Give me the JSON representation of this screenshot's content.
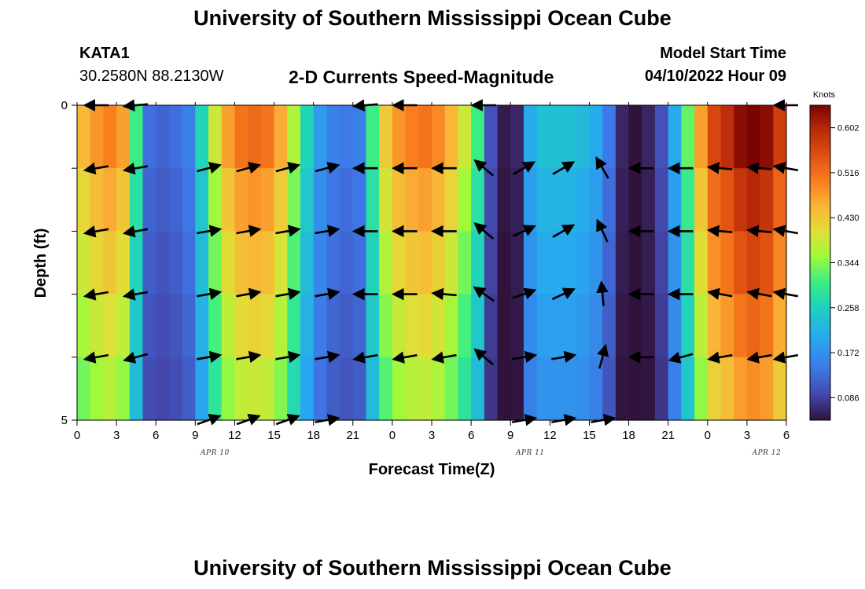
{
  "header": {
    "title": "University of Southern Mississippi Ocean Cube",
    "station": "KATA1",
    "coords": "30.2580N  88.2130W",
    "subtitle": "2-D Currents Speed-Magnitude",
    "model_label": "Model Start Time",
    "model_time": "04/10/2022 Hour 09",
    "footer_title": "University of Southern Mississippi Ocean Cube"
  },
  "colors": {
    "axis": "#000000",
    "arrow": "#000000"
  },
  "chart_data": {
    "type": "heatmap",
    "title": "2-D Currents Speed-Magnitude",
    "xlabel": "Forecast Time(Z)",
    "ylabel": "Depth (ft)",
    "x_tick_labels": [
      "0",
      "3",
      "6",
      "9",
      "12",
      "15",
      "18",
      "21",
      "0",
      "3",
      "6",
      "9",
      "12",
      "15",
      "18",
      "21",
      "0",
      "3",
      "6"
    ],
    "date_labels": [
      {
        "text": "APR 10",
        "hour": 10.5
      },
      {
        "text": "APR 11",
        "hour": 34.5
      },
      {
        "text": "APR 12",
        "hour": 52.5
      }
    ],
    "y_tick_labels": [
      "0",
      "5"
    ],
    "ylim": [
      0,
      5
    ],
    "xlim_hours": [
      0,
      54
    ],
    "colorbar": {
      "label": "Knots",
      "min": 0.043,
      "max": 0.645,
      "ticks": [
        "0.602",
        "0.516",
        "0.430",
        "0.344",
        "0.258",
        "0.172",
        "0.086"
      ],
      "tick_values": [
        0.602,
        0.516,
        0.43,
        0.344,
        0.258,
        0.172,
        0.086
      ]
    },
    "speed_by_hour": [
      0.44,
      0.47,
      0.49,
      0.46,
      0.3,
      0.13,
      0.12,
      0.13,
      0.15,
      0.26,
      0.38,
      0.46,
      0.5,
      0.51,
      0.5,
      0.45,
      0.36,
      0.26,
      0.18,
      0.15,
      0.14,
      0.15,
      0.3,
      0.42,
      0.47,
      0.49,
      0.5,
      0.48,
      0.44,
      0.38,
      0.3,
      0.1,
      0.05,
      0.06,
      0.2,
      0.23,
      0.23,
      0.23,
      0.22,
      0.2,
      0.14,
      0.06,
      0.04,
      0.06,
      0.1,
      0.2,
      0.32,
      0.46,
      0.55,
      0.58,
      0.62,
      0.64,
      0.62,
      0.56,
      0.58
    ],
    "arrow_hours": [
      1.5,
      4.5,
      10,
      13,
      16,
      19,
      22,
      25,
      28,
      31,
      34,
      37,
      40,
      43,
      46,
      49,
      52,
      54
    ],
    "arrow_depths": [
      0,
      1,
      2,
      3,
      4,
      5
    ],
    "arrow_angles_by_depth": [
      [
        180,
        185,
        null,
        null,
        null,
        null,
        185,
        180,
        null,
        180,
        null,
        null,
        null,
        null,
        null,
        null,
        null,
        180
      ],
      [
        190,
        190,
        15,
        15,
        15,
        15,
        180,
        180,
        180,
        140,
        30,
        30,
        120,
        180,
        180,
        175,
        175,
        170
      ],
      [
        190,
        190,
        10,
        10,
        10,
        10,
        180,
        180,
        180,
        140,
        25,
        30,
        115,
        180,
        180,
        175,
        175,
        170
      ],
      [
        190,
        190,
        10,
        10,
        10,
        10,
        180,
        180,
        175,
        145,
        20,
        25,
        95,
        180,
        180,
        170,
        170,
        170
      ],
      [
        190,
        195,
        10,
        10,
        10,
        10,
        190,
        190,
        190,
        140,
        10,
        10,
        75,
        180,
        195,
        190,
        190,
        190
      ],
      [
        null,
        null,
        20,
        20,
        20,
        10,
        null,
        null,
        null,
        null,
        10,
        10,
        10,
        null,
        null,
        null,
        null,
        null
      ]
    ]
  }
}
